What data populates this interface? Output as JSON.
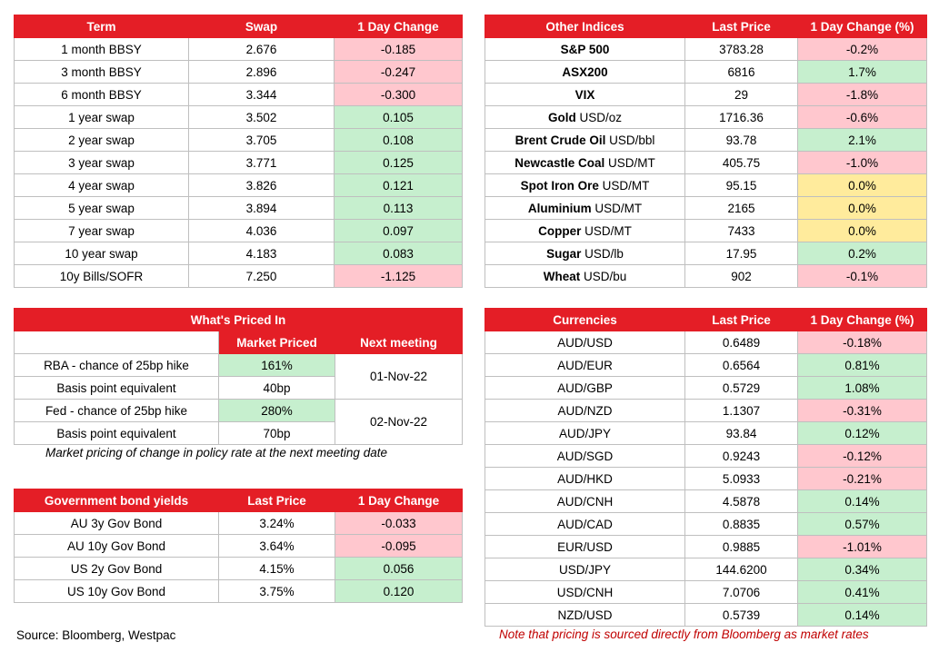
{
  "swaps": {
    "headers": [
      "Term",
      "Swap",
      "1 Day Change"
    ],
    "rows": [
      {
        "term": "1 month BBSY",
        "swap": "2.676",
        "change": "-0.185",
        "dir": "neg"
      },
      {
        "term": "3 month BBSY",
        "swap": "2.896",
        "change": "-0.247",
        "dir": "neg"
      },
      {
        "term": "6 month BBSY",
        "swap": "3.344",
        "change": "-0.300",
        "dir": "neg"
      },
      {
        "term": "1 year swap",
        "swap": "3.502",
        "change": "0.105",
        "dir": "pos"
      },
      {
        "term": "2 year swap",
        "swap": "3.705",
        "change": "0.108",
        "dir": "pos"
      },
      {
        "term": "3 year swap",
        "swap": "3.771",
        "change": "0.125",
        "dir": "pos"
      },
      {
        "term": "4 year swap",
        "swap": "3.826",
        "change": "0.121",
        "dir": "pos"
      },
      {
        "term": "5 year swap",
        "swap": "3.894",
        "change": "0.113",
        "dir": "pos"
      },
      {
        "term": "7 year swap",
        "swap": "4.036",
        "change": "0.097",
        "dir": "pos"
      },
      {
        "term": "10 year swap",
        "swap": "4.183",
        "change": "0.083",
        "dir": "pos"
      },
      {
        "term": "10y Bills/SOFR",
        "swap": "7.250",
        "change": "-1.125",
        "dir": "neg"
      }
    ]
  },
  "indices": {
    "headers": [
      "Other Indices",
      "Last Price",
      "1 Day Change (%)"
    ],
    "rows": [
      {
        "name": "S&P 500",
        "unit": "",
        "price": "3783.28",
        "change": "-0.2%",
        "dir": "neg"
      },
      {
        "name": "ASX200",
        "unit": "",
        "price": "6816",
        "change": "1.7%",
        "dir": "pos"
      },
      {
        "name": "VIX",
        "unit": "",
        "price": "29",
        "change": "-1.8%",
        "dir": "neg"
      },
      {
        "name": "Gold",
        "unit": " USD/oz",
        "price": "1716.36",
        "change": "-0.6%",
        "dir": "neg"
      },
      {
        "name": "Brent Crude Oil",
        "unit": " USD/bbl",
        "price": "93.78",
        "change": "2.1%",
        "dir": "pos"
      },
      {
        "name": "Newcastle Coal",
        "unit": " USD/MT",
        "price": "405.75",
        "change": "-1.0%",
        "dir": "neg"
      },
      {
        "name": "Spot Iron Ore",
        "unit": " USD/MT",
        "price": "95.15",
        "change": "0.0%",
        "dir": "zero"
      },
      {
        "name": "Aluminium",
        "unit": " USD/MT",
        "price": "2165",
        "change": "0.0%",
        "dir": "zero"
      },
      {
        "name": "Copper",
        "unit": " USD/MT",
        "price": "7433",
        "change": "0.0%",
        "dir": "zero"
      },
      {
        "name": "Sugar",
        "unit": " USD/lb",
        "price": "17.95",
        "change": "0.2%",
        "dir": "pos"
      },
      {
        "name": "Wheat",
        "unit": " USD/bu",
        "price": "902",
        "change": "-0.1%",
        "dir": "neg"
      }
    ]
  },
  "priced_in": {
    "title": "What's Priced In",
    "col_market": "Market Priced",
    "col_next": "Next meeting",
    "rows": [
      {
        "label": "RBA - chance of 25bp hike",
        "value": "161%"
      },
      {
        "label": "Basis point equivalent",
        "value": "40bp"
      },
      {
        "label": "Fed - chance of 25bp hike",
        "value": "280%"
      },
      {
        "label": "Basis point equivalent",
        "value": "70bp"
      }
    ],
    "meeting_rba": "01-Nov-22",
    "meeting_fed": "02-Nov-22",
    "note": "Market pricing of change in policy rate at the next meeting date"
  },
  "bonds": {
    "headers": [
      "Government bond yields",
      "Last Price",
      "1 Day Change"
    ],
    "rows": [
      {
        "name": "AU 3y Gov Bond",
        "price": "3.24%",
        "change": "-0.033",
        "dir": "neg"
      },
      {
        "name": "AU 10y Gov Bond",
        "price": "3.64%",
        "change": "-0.095",
        "dir": "neg"
      },
      {
        "name": "US 2y Gov Bond",
        "price": "4.15%",
        "change": "0.056",
        "dir": "pos"
      },
      {
        "name": "US 10y Gov Bond",
        "price": "3.75%",
        "change": "0.120",
        "dir": "pos"
      }
    ]
  },
  "currencies": {
    "headers": [
      "Currencies",
      "Last Price",
      "1 Day Change (%)"
    ],
    "rows": [
      {
        "pair": "AUD/USD",
        "price": "0.6489",
        "change": "-0.18%",
        "dir": "neg"
      },
      {
        "pair": "AUD/EUR",
        "price": "0.6564",
        "change": "0.81%",
        "dir": "pos"
      },
      {
        "pair": "AUD/GBP",
        "price": "0.5729",
        "change": "1.08%",
        "dir": "pos"
      },
      {
        "pair": "AUD/NZD",
        "price": "1.1307",
        "change": "-0.31%",
        "dir": "neg"
      },
      {
        "pair": "AUD/JPY",
        "price": "93.84",
        "change": "0.12%",
        "dir": "pos"
      },
      {
        "pair": "AUD/SGD",
        "price": "0.9243",
        "change": "-0.12%",
        "dir": "neg"
      },
      {
        "pair": "AUD/HKD",
        "price": "5.0933",
        "change": "-0.21%",
        "dir": "neg"
      },
      {
        "pair": "AUD/CNH",
        "price": "4.5878",
        "change": "0.14%",
        "dir": "pos"
      },
      {
        "pair": "AUD/CAD",
        "price": "0.8835",
        "change": "0.57%",
        "dir": "pos"
      },
      {
        "pair": "EUR/USD",
        "price": "0.9885",
        "change": "-1.01%",
        "dir": "neg"
      },
      {
        "pair": "USD/JPY",
        "price": "144.6200",
        "change": "0.34%",
        "dir": "pos"
      },
      {
        "pair": "USD/CNH",
        "price": "7.0706",
        "change": "0.41%",
        "dir": "pos"
      },
      {
        "pair": "NZD/USD",
        "price": "0.5739",
        "change": "0.14%",
        "dir": "pos"
      }
    ]
  },
  "footer": {
    "source": "Source: Bloomberg, Westpac",
    "note": "Note that pricing is sourced directly from Bloomberg as market rates"
  }
}
